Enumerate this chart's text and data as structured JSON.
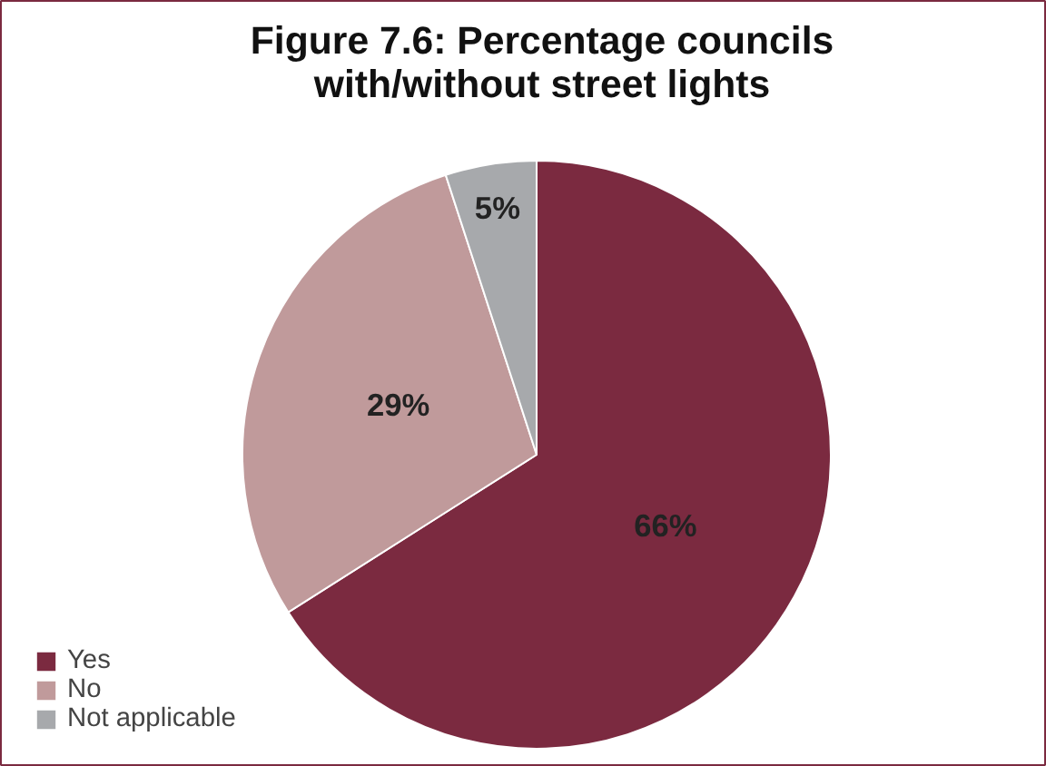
{
  "chart_data": {
    "type": "pie",
    "title": "Figure 7.6: Percentage councils with/without street lights",
    "categories": [
      "Yes",
      "No",
      "Not applicable"
    ],
    "values": [
      66,
      29,
      5
    ],
    "colors": [
      "#7b2a40",
      "#c09a9b",
      "#a7a9ac"
    ],
    "value_labels": [
      "66%",
      "29%",
      "5%"
    ],
    "legend": "bottom left"
  }
}
